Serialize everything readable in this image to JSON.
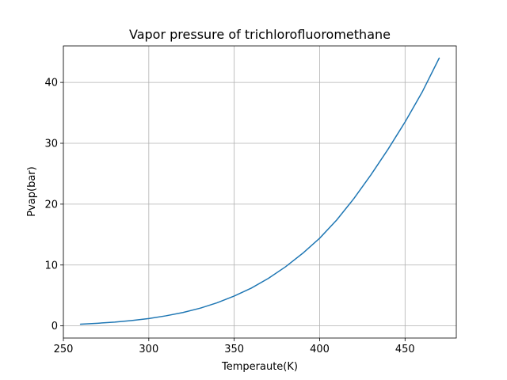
{
  "chart_data": {
    "type": "line",
    "title": "Vapor pressure of trichlorofluoromethane",
    "xlabel": "Temperaute(K)",
    "ylabel": "Pvap(bar)",
    "xlim": [
      250,
      480
    ],
    "ylim": [
      -2,
      46
    ],
    "xticks": [
      250,
      300,
      350,
      400,
      450
    ],
    "yticks": [
      0,
      10,
      20,
      30,
      40
    ],
    "grid": true,
    "series": [
      {
        "color": "#1f77b4",
        "x": [
          260,
          270,
          280,
          290,
          300,
          310,
          320,
          330,
          340,
          350,
          360,
          370,
          380,
          390,
          400,
          410,
          420,
          430,
          440,
          450,
          460,
          470
        ],
        "y": [
          0.28,
          0.43,
          0.62,
          0.88,
          1.2,
          1.65,
          2.2,
          2.9,
          3.8,
          4.9,
          6.2,
          7.8,
          9.7,
          11.9,
          14.4,
          17.4,
          20.9,
          24.8,
          29.0,
          33.5,
          38.4,
          44.0
        ]
      }
    ]
  }
}
